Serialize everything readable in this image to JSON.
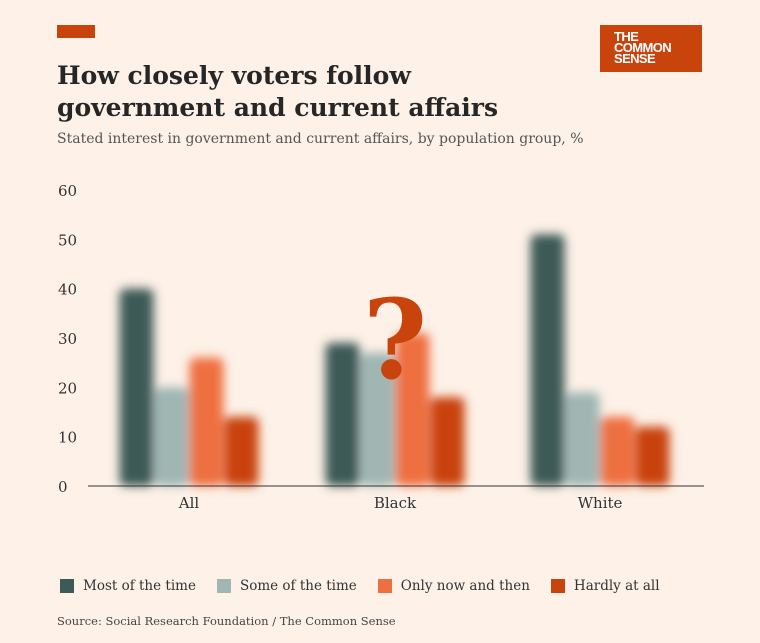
{
  "header": {
    "logo_lines": [
      "THE",
      "COMMON",
      "SENSE"
    ],
    "title": "How closely voters follow government and current affairs",
    "subtitle": "Stated interest in government and current affairs, by population group, %"
  },
  "overlay": {
    "mark": "?",
    "color": "#c9430d"
  },
  "footer": {
    "source": "Source: Social Research Foundation / The Common Sense"
  },
  "colors": {
    "accent": "#c9430d",
    "background": "#fdf1e8",
    "series": [
      "#3c5a57",
      "#9fb6b3",
      "#ee7040",
      "#c9430d"
    ]
  },
  "chart_data": {
    "type": "bar",
    "categories": [
      "All",
      "Black",
      "White"
    ],
    "series": [
      {
        "name": "Most of the time",
        "values": [
          40,
          29,
          51
        ]
      },
      {
        "name": "Some of the time",
        "values": [
          20,
          27,
          19
        ]
      },
      {
        "name": "Only now and then",
        "values": [
          26,
          31,
          14
        ]
      },
      {
        "name": "Hardly at all",
        "values": [
          14,
          18,
          12
        ]
      }
    ],
    "ylim": [
      0,
      60
    ],
    "yticks": [
      0,
      10,
      20,
      30,
      40,
      50,
      60
    ],
    "legend": "bottom",
    "grid": false
  }
}
